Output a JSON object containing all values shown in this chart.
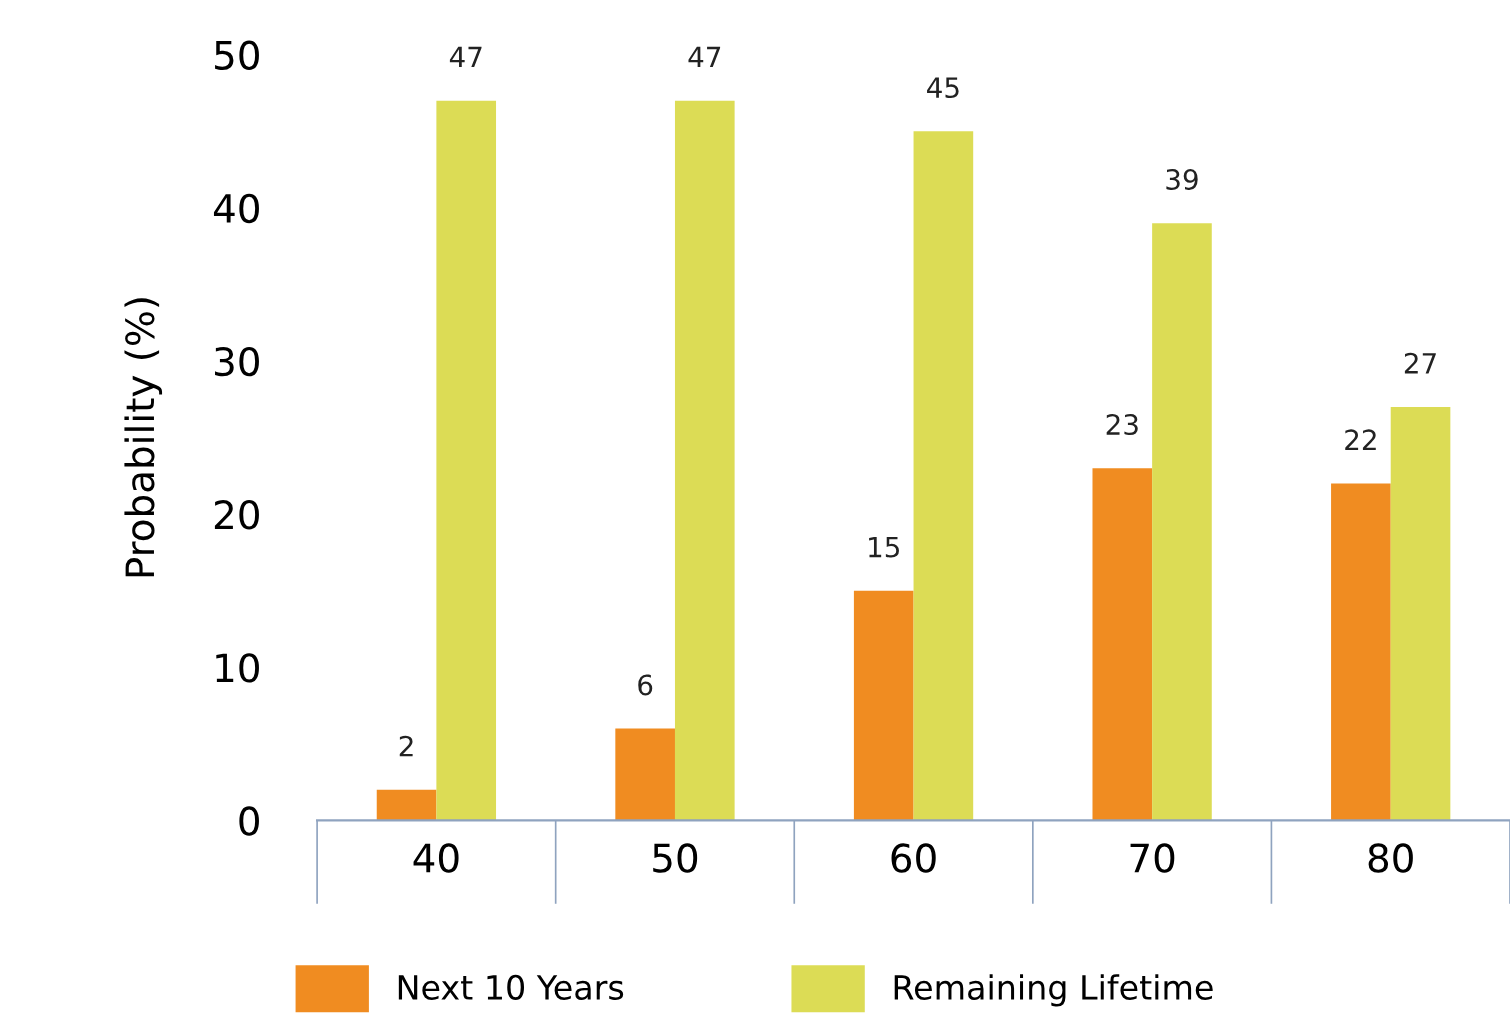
{
  "chart_data": {
    "type": "bar",
    "ylabel": "Probability (%)",
    "categories": [
      "40",
      "50",
      "60",
      "70",
      "80"
    ],
    "series": [
      {
        "name": "Next 10 Years",
        "color": "#f08c21",
        "values": [
          2,
          6,
          15,
          23,
          22
        ]
      },
      {
        "name": "Remaining Lifetime",
        "color": "#dcdc55",
        "values": [
          47,
          47,
          45,
          39,
          27
        ]
      }
    ],
    "ylim": [
      0,
      50
    ],
    "yticks": [
      0,
      10,
      20,
      30,
      40,
      50
    ],
    "data_labels": true,
    "grid": false,
    "legend": "bottom"
  }
}
